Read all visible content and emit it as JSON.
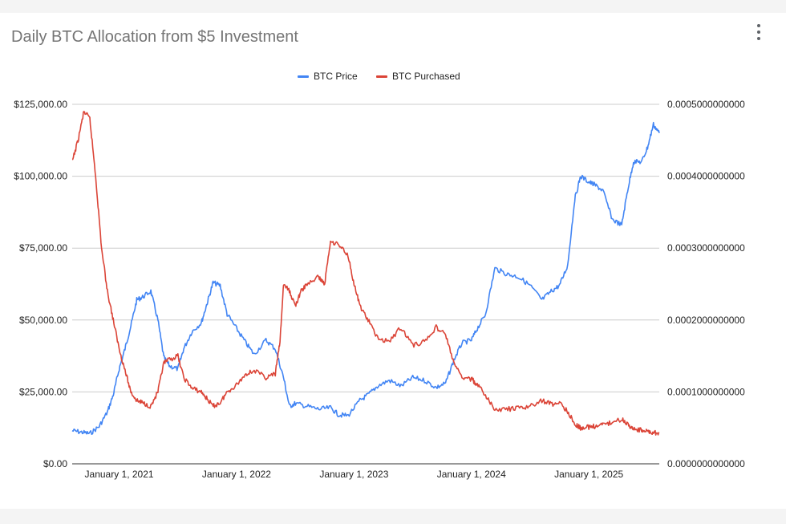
{
  "chart_data": {
    "type": "line",
    "title": "Daily BTC Allocation from $5 Investment",
    "legend_position": "top",
    "left_axis": {
      "min": 0,
      "max": 125000,
      "tick_values": [
        0,
        25000,
        50000,
        75000,
        100000,
        125000
      ],
      "tick_labels": [
        "$0.00",
        "$25,000.00",
        "$50,000.00",
        "$75,000.00",
        "$100,000.00",
        "$125,000.00"
      ]
    },
    "right_axis": {
      "min": 0,
      "max": 0.0005,
      "tick_values": [
        0,
        0.0001,
        0.0002,
        0.0003,
        0.0004,
        0.0005
      ],
      "tick_labels": [
        "0.0000000000000",
        "0.0001000000000",
        "0.0002000000000",
        "0.0003000000000",
        "0.0004000000000",
        "0.0005000000000"
      ]
    },
    "x_axis": {
      "min": 2020.6,
      "max": 2025.6,
      "tick_values": [
        2021,
        2022,
        2023,
        2024,
        2025
      ],
      "tick_labels": [
        "January 1, 2021",
        "January 1, 2022",
        "January 1, 2023",
        "January 1, 2024",
        "January 1, 2025"
      ]
    },
    "grid": true,
    "series": [
      {
        "name": "BTC Price",
        "axis": "left",
        "color": "#4285f4",
        "x": [
          2020.6,
          2020.68,
          2020.75,
          2020.83,
          2020.9,
          2020.95,
          2021.0,
          2021.05,
          2021.1,
          2021.15,
          2021.2,
          2021.27,
          2021.33,
          2021.38,
          2021.43,
          2021.5,
          2021.55,
          2021.62,
          2021.7,
          2021.75,
          2021.8,
          2021.86,
          2021.92,
          2022.0,
          2022.08,
          2022.15,
          2022.25,
          2022.33,
          2022.4,
          2022.45,
          2022.5,
          2022.6,
          2022.7,
          2022.8,
          2022.87,
          2022.95,
          2023.05,
          2023.12,
          2023.2,
          2023.3,
          2023.4,
          2023.5,
          2023.6,
          2023.7,
          2023.78,
          2023.85,
          2023.92,
          2024.0,
          2024.05,
          2024.12,
          2024.2,
          2024.3,
          2024.4,
          2024.5,
          2024.6,
          2024.68,
          2024.75,
          2024.82,
          2024.88,
          2024.93,
          2025.0,
          2025.05,
          2025.12,
          2025.2,
          2025.28,
          2025.33,
          2025.38,
          2025.45,
          2025.5,
          2025.55,
          2025.6
        ],
        "values": [
          11500,
          11000,
          10500,
          13000,
          18000,
          24000,
          33000,
          40000,
          48000,
          57000,
          58000,
          60000,
          50000,
          37000,
          34000,
          33000,
          40000,
          46000,
          49000,
          56000,
          63000,
          62000,
          52000,
          47000,
          42000,
          38000,
          43000,
          40000,
          30000,
          20000,
          21000,
          20000,
          19000,
          19500,
          17000,
          16800,
          22000,
          24000,
          27000,
          29000,
          27000,
          30000,
          29000,
          26500,
          28000,
          36000,
          42000,
          43000,
          47000,
          52000,
          68000,
          66000,
          65000,
          62000,
          57000,
          60000,
          62000,
          69000,
          92000,
          100000,
          98000,
          97000,
          95000,
          85000,
          83000,
          95000,
          105000,
          105000,
          110000,
          118000,
          115000
        ]
      },
      {
        "name": "BTC Purchased",
        "axis": "right",
        "color": "#db4437",
        "x": [
          2020.6,
          2020.65,
          2020.7,
          2020.75,
          2020.8,
          2020.85,
          2020.9,
          2020.95,
          2021.0,
          2021.05,
          2021.1,
          2021.15,
          2021.2,
          2021.27,
          2021.33,
          2021.38,
          2021.43,
          2021.5,
          2021.55,
          2021.62,
          2021.7,
          2021.75,
          2021.8,
          2021.86,
          2021.92,
          2022.0,
          2022.08,
          2022.15,
          2022.25,
          2022.33,
          2022.37,
          2022.4,
          2022.45,
          2022.5,
          2022.55,
          2022.6,
          2022.7,
          2022.75,
          2022.8,
          2022.87,
          2022.95,
          2023.0,
          2023.05,
          2023.12,
          2023.2,
          2023.3,
          2023.4,
          2023.5,
          2023.6,
          2023.7,
          2023.78,
          2023.85,
          2023.92,
          2024.0,
          2024.05,
          2024.12,
          2024.2,
          2024.3,
          2024.4,
          2024.5,
          2024.6,
          2024.68,
          2024.75,
          2024.82,
          2024.88,
          2024.93,
          2025.0,
          2025.05,
          2025.12,
          2025.2,
          2025.28,
          2025.33,
          2025.38,
          2025.45,
          2025.5,
          2025.55,
          2025.6
        ],
        "values": [
          0.00042,
          0.00045,
          0.00049,
          0.00048,
          0.0004,
          0.0003,
          0.00024,
          0.0002,
          0.00016,
          0.00013,
          0.0001,
          8.8e-05,
          8.5e-05,
          8e-05,
          0.0001,
          0.00014,
          0.000145,
          0.00015,
          0.00012,
          0.000105,
          0.0001,
          9e-05,
          8e-05,
          8.5e-05,
          0.0001,
          0.00011,
          0.000125,
          0.00013,
          0.00012,
          0.000125,
          0.00017,
          0.00025,
          0.00024,
          0.00022,
          0.00024,
          0.00025,
          0.00026,
          0.00025,
          0.00031,
          0.000305,
          0.00029,
          0.00025,
          0.00022,
          0.0002,
          0.000175,
          0.00017,
          0.00019,
          0.000165,
          0.00017,
          0.00019,
          0.00018,
          0.00014,
          0.00012,
          0.000118,
          0.00011,
          9.5e-05,
          7.5e-05,
          7.6e-05,
          7.7e-05,
          8e-05,
          8.8e-05,
          8.3e-05,
          8.5e-05,
          7.3e-05,
          5.5e-05,
          5e-05,
          5.1e-05,
          5.2e-05,
          5.4e-05,
          5.8e-05,
          6.2e-05,
          5.6e-05,
          4.8e-05,
          4.7e-05,
          4.5e-05,
          4.3e-05,
          4.3e-05
        ]
      }
    ]
  }
}
